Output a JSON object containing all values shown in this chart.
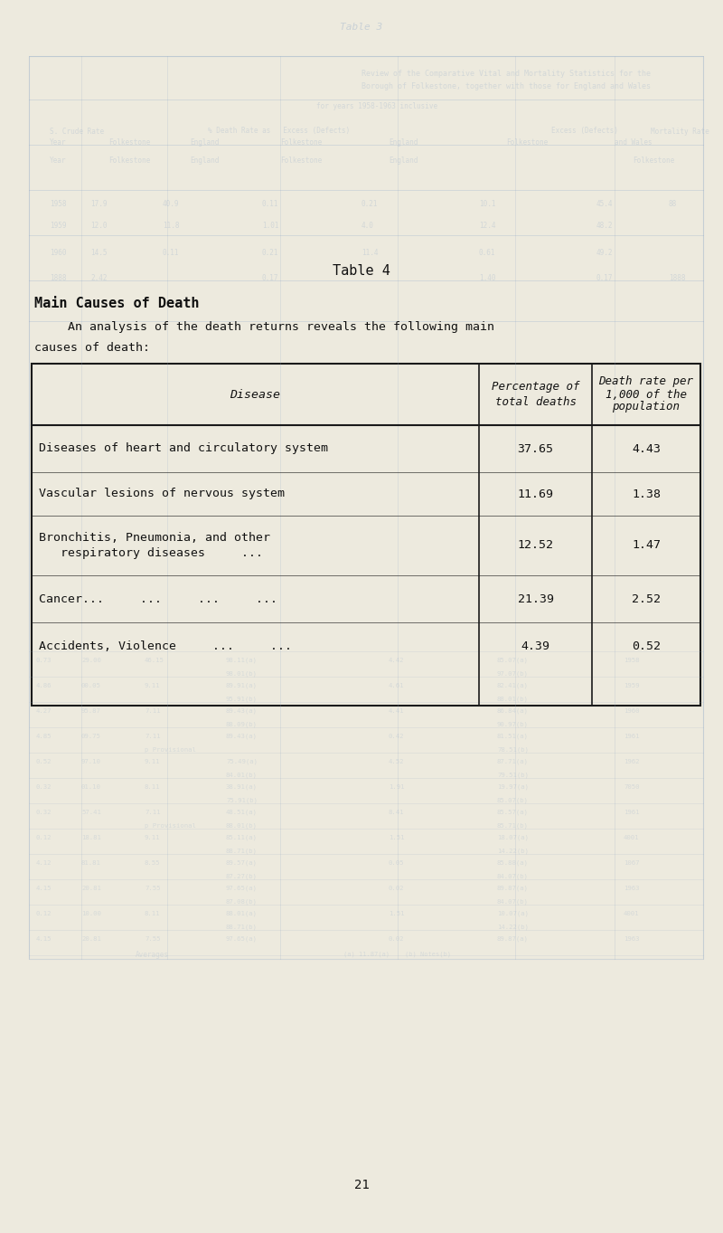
{
  "title": "Table 4",
  "section_title": "Main Causes of Death",
  "intro_line1": "An analysis of the death returns reveals the following main",
  "intro_line2": "causes of death:",
  "page_number": "21",
  "table_headers": [
    "Disease",
    "Percentage of\ntotal deaths",
    "Death rate per\n1,000 of the\npopulation"
  ],
  "table_rows": [
    [
      "Diseases of heart and circulatory system",
      "37.65",
      "4.43"
    ],
    [
      "Vascular lesions of nervous system",
      "11.69",
      "1.38"
    ],
    [
      "Bronchitis, Pneumonia, and other\n   respiratory diseases     ...",
      "12.52",
      "1.47"
    ],
    [
      "Cancer...     ...     ...     ...",
      "21.39",
      "2.52"
    ],
    [
      "Accidents, Violence     ...     ...",
      "4.39",
      "0.52"
    ]
  ],
  "bg_color": "#edeade",
  "table_border_color": "#1a1a1a",
  "body_font_size": 9.5,
  "title_font_size": 11,
  "section_title_font_size": 11,
  "text_color": "#111111",
  "ghost_color": "#8fa8c8",
  "ghost_alpha": 0.28
}
